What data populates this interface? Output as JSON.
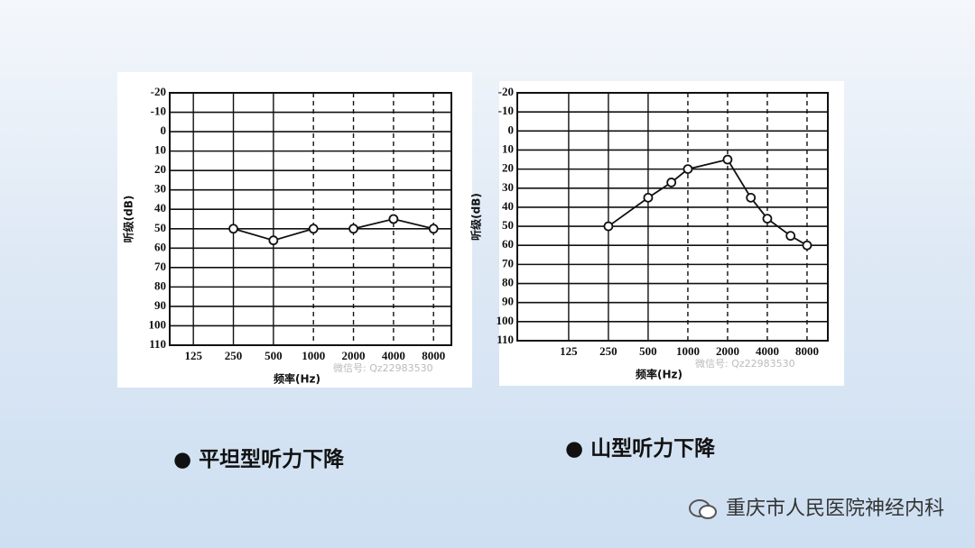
{
  "chart_data": [
    {
      "type": "line",
      "xlabel": "频率(Hz)",
      "ylabel": "听级(dB)",
      "annotation": "微信号: Qz22983530",
      "x": [
        250,
        500,
        1000,
        2000,
        4000,
        8000
      ],
      "values": [
        50,
        56,
        50,
        50,
        45,
        50
      ],
      "xscale": "log",
      "xlim": [
        83,
        10900
      ],
      "xticks": [
        125,
        250,
        500,
        1000,
        2000,
        4000,
        8000
      ],
      "ylim": [
        -20,
        110
      ],
      "yticks": [
        -20,
        -10,
        0,
        10,
        20,
        30,
        40,
        50,
        60,
        70,
        80,
        90,
        100,
        110
      ],
      "y_inverted": true,
      "grid": true,
      "color": "#111111"
    },
    {
      "type": "line",
      "xlabel": "频率(Hz)",
      "ylabel": "听级(dB)",
      "annotation": "微信号: Qz22983530",
      "x": [
        250,
        500,
        750,
        1000,
        2000,
        3000,
        4000,
        6000,
        8000
      ],
      "values": [
        50,
        35,
        27,
        20,
        15,
        35,
        46,
        55,
        60
      ],
      "xscale": "log",
      "xlim": [
        51,
        11500
      ],
      "xticks": [
        125,
        250,
        500,
        1000,
        2000,
        4000,
        8000
      ],
      "ylim": [
        -20,
        110
      ],
      "yticks": [
        -20,
        -10,
        0,
        10,
        20,
        30,
        40,
        50,
        60,
        70,
        80,
        90,
        100,
        110
      ],
      "y_inverted": true,
      "grid": true,
      "color": "#111111"
    }
  ],
  "captions": [
    "平坦型听力下降",
    "山型听力下降"
  ],
  "footer": "重庆市人民医院神经内科"
}
